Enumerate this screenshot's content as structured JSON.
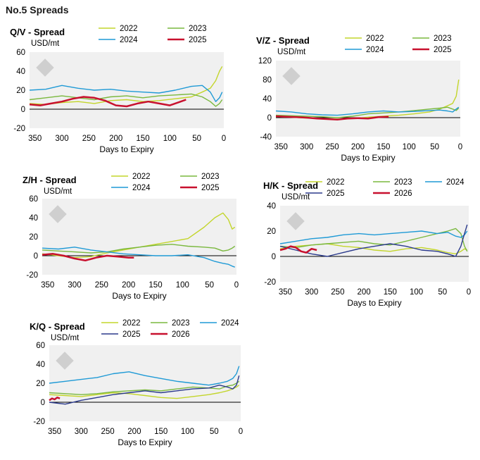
{
  "page_title": "No.5 Spreads",
  "colors": {
    "2022": "#c3d52b",
    "2023": "#7ab83e",
    "2024": "#1f9ad6",
    "2025": "#c8102e",
    "2026": "#c8102e",
    "2025_navy": "#2b3a8c",
    "plot_bg": "#f0f0f0",
    "zero": "#000000"
  },
  "chart_data": [
    {
      "type": "line",
      "title": "Q/V - Spread",
      "ylabel": "USD/mt",
      "xlabel": "Days to Expiry",
      "x_reversed": true,
      "xlim": [
        360,
        0
      ],
      "ylim": [
        -20,
        60
      ],
      "xticks": [
        350,
        300,
        250,
        200,
        150,
        100,
        50,
        0
      ],
      "yticks": [
        -20,
        0,
        20,
        40,
        60
      ],
      "grid": false,
      "legend": "top",
      "series": [
        {
          "name": "2022",
          "color": "#c3d52b",
          "x": [
            360,
            330,
            300,
            270,
            240,
            210,
            180,
            150,
            120,
            90,
            60,
            40,
            25,
            15,
            8,
            3
          ],
          "y": [
            6,
            5,
            7,
            8,
            6,
            9,
            10,
            8,
            9,
            11,
            13,
            18,
            22,
            30,
            40,
            45
          ]
        },
        {
          "name": "2023",
          "color": "#7ab83e",
          "x": [
            360,
            330,
            300,
            270,
            240,
            210,
            180,
            150,
            120,
            90,
            60,
            40,
            25,
            15,
            8,
            3
          ],
          "y": [
            10,
            12,
            14,
            12,
            10,
            13,
            14,
            12,
            14,
            15,
            16,
            13,
            8,
            3,
            6,
            10
          ]
        },
        {
          "name": "2024",
          "color": "#1f9ad6",
          "x": [
            360,
            330,
            300,
            270,
            240,
            210,
            180,
            150,
            120,
            90,
            60,
            40,
            25,
            15,
            8,
            3
          ],
          "y": [
            20,
            21,
            25,
            22,
            20,
            21,
            19,
            18,
            17,
            20,
            24,
            25,
            18,
            8,
            12,
            18
          ]
        },
        {
          "name": "2025",
          "color": "#c8102e",
          "x": [
            360,
            340,
            320,
            300,
            280,
            260,
            240,
            220,
            200,
            180,
            160,
            140,
            120,
            100,
            80,
            70
          ],
          "y": [
            5,
            4,
            6,
            8,
            11,
            13,
            12,
            9,
            4,
            3,
            6,
            8,
            6,
            4,
            8,
            10
          ]
        }
      ]
    },
    {
      "type": "line",
      "title": "V/Z - Spread",
      "ylabel": "USD/mt",
      "xlabel": "Days to Expiry",
      "x_reversed": true,
      "xlim": [
        360,
        0
      ],
      "ylim": [
        -40,
        120
      ],
      "xticks": [
        350,
        300,
        250,
        200,
        150,
        100,
        50,
        0
      ],
      "yticks": [
        -40,
        0,
        40,
        80,
        120
      ],
      "grid": false,
      "legend": "top",
      "series": [
        {
          "name": "2022",
          "color": "#c3d52b",
          "x": [
            360,
            330,
            300,
            270,
            240,
            210,
            180,
            150,
            120,
            90,
            60,
            40,
            25,
            15,
            8,
            3
          ],
          "y": [
            2,
            1,
            -1,
            -2,
            -3,
            -2,
            1,
            3,
            5,
            8,
            12,
            18,
            25,
            30,
            45,
            80
          ]
        },
        {
          "name": "2023",
          "color": "#7ab83e",
          "x": [
            360,
            330,
            300,
            270,
            240,
            210,
            180,
            150,
            120,
            90,
            60,
            40,
            25,
            15,
            8,
            3
          ],
          "y": [
            5,
            4,
            3,
            2,
            0,
            3,
            8,
            10,
            12,
            15,
            18,
            20,
            22,
            18,
            15,
            20
          ]
        },
        {
          "name": "2024",
          "color": "#1f9ad6",
          "x": [
            360,
            330,
            300,
            270,
            240,
            210,
            180,
            150,
            120,
            90,
            60,
            40,
            25,
            15,
            8,
            3
          ],
          "y": [
            14,
            12,
            8,
            6,
            5,
            8,
            12,
            14,
            12,
            13,
            15,
            16,
            14,
            12,
            18,
            22
          ]
        },
        {
          "name": "2025",
          "color": "#c8102e",
          "x": [
            360,
            340,
            320,
            300,
            280,
            260,
            240,
            220,
            200,
            180,
            160,
            140
          ],
          "y": [
            3,
            2,
            1,
            0,
            -2,
            -3,
            -4,
            -2,
            -1,
            -2,
            1,
            2
          ]
        }
      ]
    },
    {
      "type": "line",
      "title": "Z/H - Spread",
      "ylabel": "USD/mt",
      "xlabel": "Days to Expiry",
      "x_reversed": true,
      "xlim": [
        360,
        0
      ],
      "ylim": [
        -20,
        60
      ],
      "xticks": [
        350,
        300,
        250,
        200,
        150,
        100,
        50,
        0
      ],
      "yticks": [
        -20,
        0,
        20,
        40,
        60
      ],
      "grid": false,
      "legend": "top",
      "series": [
        {
          "name": "2022",
          "color": "#c3d52b",
          "x": [
            360,
            330,
            300,
            270,
            240,
            210,
            180,
            150,
            120,
            90,
            60,
            40,
            25,
            15,
            8,
            3
          ],
          "y": [
            2,
            0,
            -2,
            -1,
            3,
            6,
            9,
            12,
            15,
            18,
            30,
            40,
            45,
            38,
            28,
            30
          ]
        },
        {
          "name": "2023",
          "color": "#7ab83e",
          "x": [
            360,
            330,
            300,
            270,
            240,
            210,
            180,
            150,
            120,
            90,
            60,
            40,
            25,
            15,
            8,
            3
          ],
          "y": [
            6,
            5,
            4,
            3,
            4,
            7,
            9,
            11,
            12,
            10,
            9,
            8,
            5,
            6,
            8,
            10
          ]
        },
        {
          "name": "2024",
          "color": "#1f9ad6",
          "x": [
            360,
            330,
            300,
            270,
            240,
            210,
            180,
            150,
            120,
            90,
            60,
            40,
            25,
            15,
            8,
            3
          ],
          "y": [
            8,
            7,
            9,
            6,
            4,
            2,
            1,
            0,
            0,
            1,
            -2,
            -6,
            -8,
            -9,
            -11,
            -12
          ]
        },
        {
          "name": "2025",
          "color": "#c8102e",
          "x": [
            360,
            340,
            320,
            300,
            280,
            260,
            240,
            220,
            200,
            190
          ],
          "y": [
            1,
            2,
            0,
            -3,
            -5,
            -2,
            0,
            -1,
            -2,
            -2
          ]
        }
      ]
    },
    {
      "type": "line",
      "title": "H/K - Spread",
      "ylabel": "USD/mt",
      "xlabel": "Days to Expiry",
      "x_reversed": true,
      "xlim": [
        360,
        0
      ],
      "ylim": [
        -20,
        40
      ],
      "xticks": [
        350,
        300,
        250,
        200,
        150,
        100,
        50,
        0
      ],
      "yticks": [
        -20,
        0,
        20,
        40
      ],
      "grid": false,
      "legend": "top",
      "series": [
        {
          "name": "2022",
          "color": "#c3d52b",
          "x": [
            360,
            330,
            300,
            270,
            240,
            210,
            180,
            150,
            120,
            90,
            60,
            40,
            25,
            15,
            8,
            3
          ],
          "y": [
            6,
            8,
            9,
            10,
            8,
            7,
            5,
            4,
            6,
            7,
            5,
            3,
            2,
            4,
            6,
            5
          ]
        },
        {
          "name": "2023",
          "color": "#7ab83e",
          "x": [
            360,
            330,
            300,
            270,
            240,
            210,
            180,
            150,
            120,
            90,
            60,
            40,
            25,
            15,
            8,
            3
          ],
          "y": [
            8,
            7,
            9,
            10,
            11,
            12,
            10,
            9,
            12,
            15,
            18,
            20,
            22,
            18,
            8,
            4
          ]
        },
        {
          "name": "2024",
          "color": "#1f9ad6",
          "x": [
            360,
            330,
            300,
            270,
            240,
            210,
            180,
            150,
            120,
            90,
            60,
            40,
            25,
            15,
            8,
            3
          ],
          "y": [
            10,
            12,
            14,
            15,
            17,
            18,
            17,
            18,
            19,
            20,
            18,
            19,
            16,
            15,
            17,
            20
          ]
        },
        {
          "name": "2025",
          "color": "#2b3a8c",
          "x": [
            360,
            330,
            300,
            270,
            240,
            210,
            180,
            150,
            120,
            90,
            60,
            40,
            25,
            15,
            8,
            3
          ],
          "y": [
            8,
            5,
            2,
            0,
            3,
            6,
            8,
            10,
            8,
            5,
            4,
            2,
            0,
            8,
            18,
            25
          ]
        },
        {
          "name": "2026",
          "color": "#c8102e",
          "x": [
            360,
            350,
            340,
            330,
            320,
            310,
            300,
            290
          ],
          "y": [
            5,
            6,
            8,
            7,
            4,
            3,
            6,
            5
          ]
        }
      ]
    },
    {
      "type": "line",
      "title": "K/Q - Spread",
      "ylabel": "USD/mt",
      "xlabel": "Days to Expiry",
      "x_reversed": true,
      "xlim": [
        360,
        0
      ],
      "ylim": [
        -20,
        60
      ],
      "xticks": [
        350,
        300,
        250,
        200,
        150,
        100,
        50,
        0
      ],
      "yticks": [
        -20,
        0,
        20,
        40,
        60
      ],
      "grid": false,
      "legend": "top",
      "series": [
        {
          "name": "2022",
          "color": "#c3d52b",
          "x": [
            360,
            330,
            300,
            270,
            240,
            210,
            180,
            150,
            120,
            90,
            60,
            40,
            25,
            15,
            8,
            3
          ],
          "y": [
            8,
            7,
            6,
            8,
            10,
            9,
            7,
            5,
            4,
            6,
            8,
            10,
            12,
            14,
            16,
            18
          ]
        },
        {
          "name": "2023",
          "color": "#7ab83e",
          "x": [
            360,
            330,
            300,
            270,
            240,
            210,
            180,
            150,
            120,
            90,
            60,
            40,
            25,
            15,
            8,
            3
          ],
          "y": [
            10,
            9,
            8,
            9,
            11,
            12,
            13,
            12,
            14,
            16,
            15,
            14,
            17,
            18,
            20,
            22
          ]
        },
        {
          "name": "2024",
          "color": "#1f9ad6",
          "x": [
            360,
            330,
            300,
            270,
            240,
            210,
            180,
            150,
            120,
            90,
            60,
            40,
            25,
            15,
            8,
            3
          ],
          "y": [
            20,
            22,
            24,
            26,
            30,
            32,
            28,
            25,
            22,
            20,
            18,
            20,
            22,
            25,
            30,
            38
          ]
        },
        {
          "name": "2025",
          "color": "#2b3a8c",
          "x": [
            360,
            330,
            300,
            270,
            240,
            210,
            180,
            150,
            120,
            90,
            60,
            40,
            25,
            15,
            8,
            3
          ],
          "y": [
            0,
            -2,
            2,
            5,
            8,
            10,
            12,
            10,
            12,
            14,
            15,
            18,
            16,
            14,
            18,
            28
          ]
        },
        {
          "name": "2026",
          "color": "#c8102e",
          "x": [
            360,
            355,
            350,
            345,
            340
          ],
          "y": [
            2,
            4,
            3,
            5,
            4
          ]
        }
      ]
    }
  ]
}
